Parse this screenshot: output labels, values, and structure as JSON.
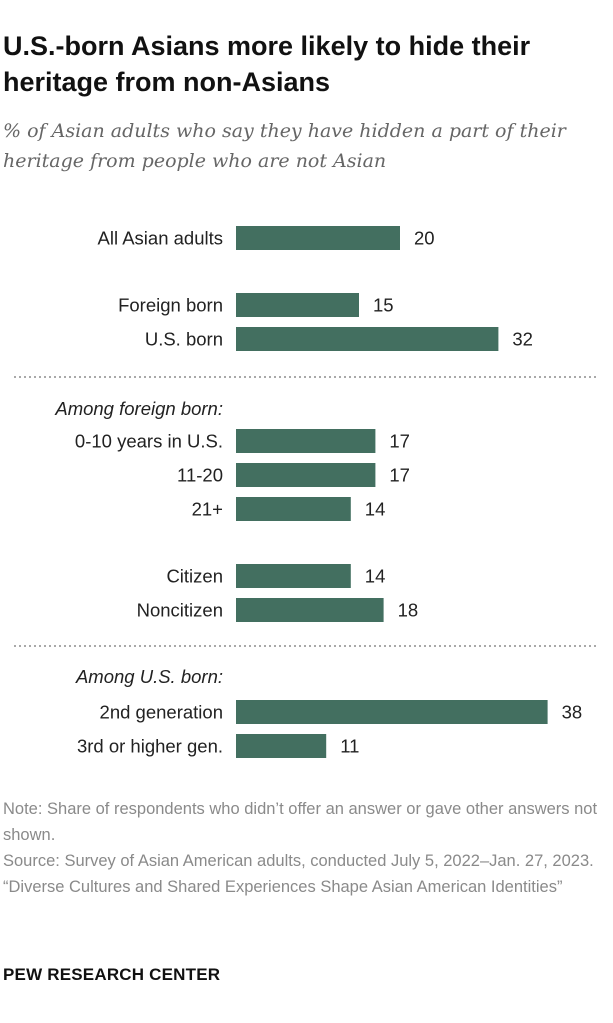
{
  "title": "U.S.-born Asians more likely to hide their heritage from non-Asians",
  "subtitle": "% of Asian adults who say they have hidden a part of their heritage from people who are not Asian",
  "chart_data": {
    "type": "bar",
    "orientation": "horizontal",
    "bar_color": "#436f60",
    "separator_color": "#a9a9a9",
    "rows": [
      {
        "kind": "bar",
        "label": "All Asian adults",
        "value": 20
      },
      {
        "kind": "bar",
        "label": "Foreign born",
        "value": 15
      },
      {
        "kind": "bar",
        "label": "U.S. born",
        "value": 32
      },
      {
        "kind": "separator"
      },
      {
        "kind": "header",
        "label": "Among foreign born:"
      },
      {
        "kind": "bar",
        "label": "0-10 years in U.S.",
        "value": 17
      },
      {
        "kind": "bar",
        "label": "11-20",
        "value": 17
      },
      {
        "kind": "bar",
        "label": "21+",
        "value": 14
      },
      {
        "kind": "bar",
        "label": "Citizen",
        "value": 14
      },
      {
        "kind": "bar",
        "label": "Noncitizen",
        "value": 18
      },
      {
        "kind": "separator"
      },
      {
        "kind": "header",
        "label": "Among U.S. born:"
      },
      {
        "kind": "bar",
        "label": "2nd generation",
        "value": 38
      },
      {
        "kind": "bar",
        "label": "3rd or higher gen.",
        "value": 11
      }
    ]
  },
  "notes": {
    "note": "Note: Share of respondents who didn’t offer an answer or gave other answers not shown.",
    "source": "Source: Survey of Asian American adults, conducted July 5, 2022–Jan. 27, 2023.",
    "report": "“Diverse Cultures and Shared Experiences Shape Asian American Identities”"
  },
  "brand": "PEW RESEARCH CENTER"
}
